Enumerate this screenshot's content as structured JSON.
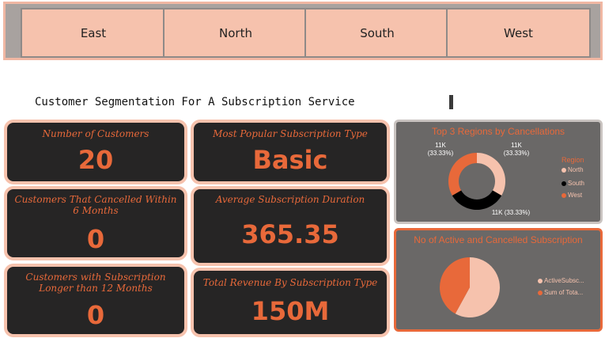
{
  "slicer": {
    "options": [
      "East",
      "North",
      "South",
      "West"
    ]
  },
  "page": {
    "title": "Customer Segmentation For A Subscription Service"
  },
  "kpis": {
    "customers": {
      "label": "Number of Customers",
      "value": "20"
    },
    "popular_type": {
      "label": "Most Popular Subscription Type",
      "value": "Basic"
    },
    "cancelled_6m": {
      "label": "Customers That Cancelled Within 6 Months",
      "value": "0"
    },
    "avg_duration": {
      "label": "Average Subscription Duration",
      "value": "365.35"
    },
    "longer_12m": {
      "label": "Customers with Subscription Longer than 12 Months",
      "value": "0"
    },
    "revenue": {
      "label": "Total Revenue By Subscription Type",
      "value": "150M"
    }
  },
  "colors": {
    "accent": "#e8693a",
    "peach": "#f6c2ad",
    "card_bg": "#262525",
    "panel_bg": "#6a6867",
    "black": "#000000"
  },
  "chart_data": [
    {
      "type": "pie",
      "title": "Top 3 Regions by Cancellations",
      "legend_title": "Region",
      "legend_placement": "right",
      "categories": [
        "North",
        "South",
        "West"
      ],
      "values": [
        11000,
        11000,
        11000
      ],
      "data_labels": [
        "11K\n(33.33%)",
        "11K (33.33%)",
        "11K\n(33.33%)"
      ],
      "colors": [
        "#f6c2ad",
        "#000000",
        "#e8693a"
      ],
      "donut": true
    },
    {
      "type": "pie",
      "title": "No of Active and Cancelled Subscription",
      "legend_placement": "right",
      "categories": [
        "ActiveSubsc...",
        "Sum of Tota..."
      ],
      "values": [
        58,
        42
      ],
      "colors": [
        "#f6c2ad",
        "#e8693a"
      ],
      "donut": false
    }
  ]
}
